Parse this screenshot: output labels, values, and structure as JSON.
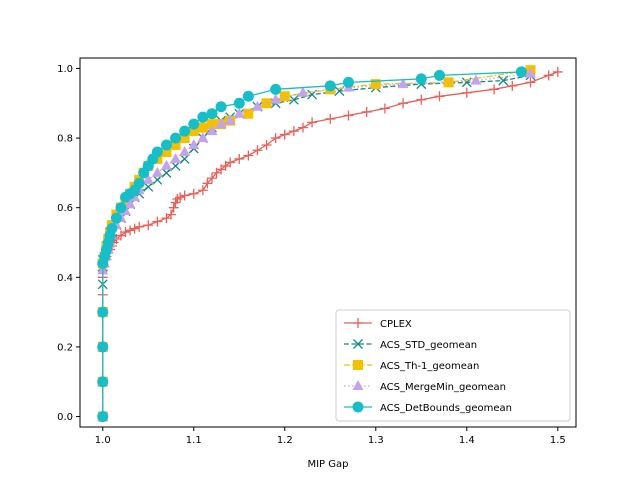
{
  "chart_data": {
    "type": "line",
    "title": "",
    "xlabel": "MIP Gap",
    "ylabel": "",
    "xlim": [
      0.975,
      1.52
    ],
    "ylim": [
      -0.03,
      1.03
    ],
    "xticks": [
      1.0,
      1.1,
      1.2,
      1.3,
      1.4,
      1.5
    ],
    "xtick_labels": [
      "1.0",
      "1.1",
      "1.2",
      "1.3",
      "1.4",
      "1.5"
    ],
    "yticks": [
      0.0,
      0.2,
      0.4,
      0.6,
      0.8,
      1.0
    ],
    "ytick_labels": [
      "0.0",
      "0.2",
      "0.4",
      "0.6",
      "0.8",
      "1.0"
    ],
    "grid": false,
    "legend_position": "bottom-right",
    "series": [
      {
        "name": "CPLEX",
        "color": "#e8605a",
        "linestyle": "solid",
        "marker": "plus",
        "x": [
          1.0,
          1.0,
          1.0,
          1.0,
          1.0,
          1.0,
          1.0,
          1.0,
          1.002,
          1.004,
          1.006,
          1.008,
          1.01,
          1.012,
          1.015,
          1.02,
          1.025,
          1.03,
          1.035,
          1.04,
          1.05,
          1.06,
          1.07,
          1.075,
          1.078,
          1.08,
          1.082,
          1.085,
          1.09,
          1.1,
          1.11,
          1.115,
          1.12,
          1.125,
          1.13,
          1.135,
          1.14,
          1.15,
          1.16,
          1.17,
          1.18,
          1.19,
          1.2,
          1.21,
          1.22,
          1.23,
          1.25,
          1.27,
          1.29,
          1.31,
          1.33,
          1.35,
          1.37,
          1.4,
          1.43,
          1.45,
          1.47,
          1.49,
          1.5
        ],
        "y": [
          0.0,
          0.1,
          0.2,
          0.3,
          0.35,
          0.4,
          0.42,
          0.44,
          0.45,
          0.46,
          0.47,
          0.48,
          0.49,
          0.5,
          0.51,
          0.52,
          0.53,
          0.535,
          0.54,
          0.545,
          0.55,
          0.56,
          0.57,
          0.58,
          0.6,
          0.615,
          0.625,
          0.63,
          0.635,
          0.64,
          0.65,
          0.67,
          0.685,
          0.7,
          0.71,
          0.72,
          0.73,
          0.74,
          0.75,
          0.765,
          0.78,
          0.8,
          0.81,
          0.82,
          0.83,
          0.845,
          0.855,
          0.865,
          0.875,
          0.885,
          0.9,
          0.91,
          0.92,
          0.93,
          0.94,
          0.95,
          0.96,
          0.98,
          0.99
        ]
      },
      {
        "name": "ACS_STD_geomean",
        "color": "#16897e",
        "linestyle": "dashed",
        "marker": "x",
        "x": [
          1.0,
          1.0,
          1.0,
          1.0,
          1.0,
          1.0,
          1.0,
          1.002,
          1.004,
          1.006,
          1.008,
          1.01,
          1.015,
          1.02,
          1.025,
          1.03,
          1.035,
          1.04,
          1.05,
          1.06,
          1.07,
          1.08,
          1.09,
          1.1,
          1.11,
          1.12,
          1.13,
          1.14,
          1.15,
          1.17,
          1.19,
          1.21,
          1.23,
          1.26,
          1.3,
          1.35,
          1.4,
          1.44,
          1.47
        ],
        "y": [
          0.0,
          0.1,
          0.2,
          0.3,
          0.38,
          0.43,
          0.45,
          0.46,
          0.48,
          0.5,
          0.52,
          0.53,
          0.55,
          0.57,
          0.59,
          0.61,
          0.63,
          0.64,
          0.66,
          0.68,
          0.7,
          0.72,
          0.74,
          0.77,
          0.8,
          0.83,
          0.85,
          0.86,
          0.87,
          0.89,
          0.9,
          0.91,
          0.925,
          0.935,
          0.945,
          0.955,
          0.96,
          0.965,
          0.98
        ]
      },
      {
        "name": "ACS_Th-1_geomean",
        "color": "#f5c000",
        "linestyle": "dashdot",
        "marker": "square",
        "x": [
          1.0,
          1.0,
          1.0,
          1.0,
          1.0,
          1.002,
          1.004,
          1.006,
          1.008,
          1.01,
          1.015,
          1.02,
          1.025,
          1.03,
          1.035,
          1.04,
          1.045,
          1.05,
          1.06,
          1.07,
          1.08,
          1.09,
          1.1,
          1.11,
          1.12,
          1.13,
          1.14,
          1.16,
          1.18,
          1.2,
          1.25,
          1.3,
          1.38,
          1.47
        ],
        "y": [
          0.0,
          0.1,
          0.2,
          0.3,
          0.44,
          0.46,
          0.49,
          0.51,
          0.53,
          0.55,
          0.58,
          0.6,
          0.62,
          0.64,
          0.66,
          0.68,
          0.7,
          0.72,
          0.74,
          0.76,
          0.78,
          0.8,
          0.82,
          0.83,
          0.84,
          0.84,
          0.85,
          0.87,
          0.9,
          0.92,
          0.94,
          0.955,
          0.96,
          0.995
        ]
      },
      {
        "name": "ACS_MergeMin_geomean",
        "color": "#c5a3ea",
        "linestyle": "dotted",
        "marker": "triangle",
        "x": [
          1.0,
          1.0,
          1.0,
          1.0,
          1.0,
          1.002,
          1.004,
          1.006,
          1.008,
          1.01,
          1.015,
          1.02,
          1.025,
          1.03,
          1.035,
          1.04,
          1.05,
          1.06,
          1.07,
          1.08,
          1.09,
          1.1,
          1.11,
          1.12,
          1.13,
          1.14,
          1.15,
          1.17,
          1.19,
          1.22,
          1.27,
          1.33,
          1.41,
          1.47
        ],
        "y": [
          0.0,
          0.1,
          0.2,
          0.3,
          0.42,
          0.44,
          0.46,
          0.48,
          0.5,
          0.52,
          0.55,
          0.57,
          0.59,
          0.61,
          0.63,
          0.65,
          0.68,
          0.7,
          0.72,
          0.74,
          0.76,
          0.78,
          0.8,
          0.82,
          0.84,
          0.85,
          0.87,
          0.89,
          0.91,
          0.93,
          0.945,
          0.955,
          0.965,
          0.985
        ]
      },
      {
        "name": "ACS_DetBounds_geomean",
        "color": "#17bec8",
        "linestyle": "solid",
        "marker": "circle",
        "x": [
          1.0,
          1.0,
          1.0,
          1.0,
          1.0,
          1.002,
          1.004,
          1.006,
          1.008,
          1.01,
          1.015,
          1.02,
          1.025,
          1.03,
          1.035,
          1.04,
          1.045,
          1.05,
          1.055,
          1.06,
          1.07,
          1.08,
          1.09,
          1.1,
          1.11,
          1.12,
          1.13,
          1.15,
          1.16,
          1.19,
          1.25,
          1.27,
          1.35,
          1.37,
          1.46
        ],
        "y": [
          0.0,
          0.1,
          0.2,
          0.3,
          0.44,
          0.46,
          0.48,
          0.5,
          0.52,
          0.54,
          0.57,
          0.6,
          0.63,
          0.64,
          0.65,
          0.67,
          0.7,
          0.72,
          0.74,
          0.76,
          0.78,
          0.8,
          0.82,
          0.84,
          0.86,
          0.87,
          0.89,
          0.9,
          0.92,
          0.94,
          0.95,
          0.96,
          0.97,
          0.98,
          0.99
        ]
      }
    ]
  }
}
